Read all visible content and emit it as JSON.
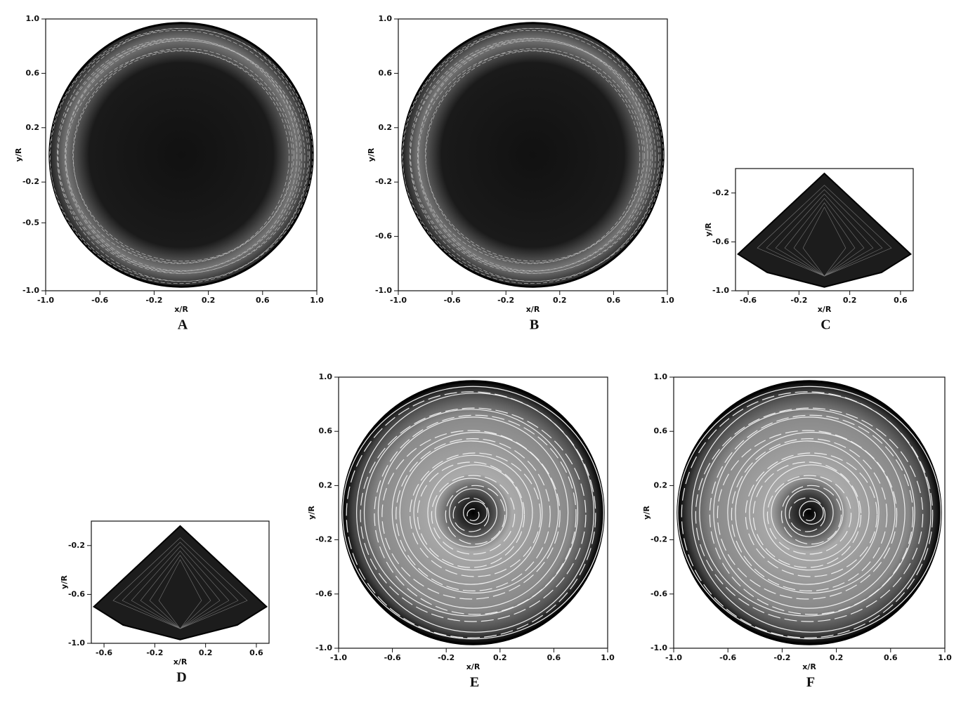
{
  "chart_data": [
    {
      "type": "contour",
      "label": "A",
      "xlabel": "x/R",
      "ylabel": "y/R",
      "xlim": [
        -1.0,
        1.0
      ],
      "ylim": [
        -1.0,
        1.0
      ],
      "xticks": [
        {
          "value": -1,
          "label": "-1.0"
        },
        -0.6,
        -0.2,
        0.2,
        0.6,
        {
          "value": 1,
          "label": "1.0"
        }
      ],
      "yticks": [
        {
          "value": 1,
          "label": "1.0"
        },
        0.6,
        0.2,
        -0.2,
        -0.5,
        {
          "value": -1,
          "label": "-1.0"
        }
      ]
    },
    {
      "type": "contour",
      "label": "B",
      "xlabel": "x/R",
      "ylabel": "y/R",
      "xlim": [
        -1.0,
        1.0
      ],
      "ylim": [
        -1.0,
        1.0
      ],
      "xticks": [
        {
          "value": -1,
          "label": "-1.0"
        },
        -0.6,
        -0.2,
        0.2,
        0.6,
        {
          "value": 1,
          "label": "1.0"
        }
      ],
      "yticks": [
        {
          "value": 1,
          "label": "1.0"
        },
        0.6,
        0.2,
        -0.2,
        -0.6,
        {
          "value": -1,
          "label": "-1.0"
        }
      ]
    },
    {
      "type": "contour-wedge",
      "label": "C",
      "xlabel": "x/R",
      "ylabel": "y/R",
      "xlim": [
        -0.7,
        0.7
      ],
      "ylim": [
        -1.0,
        0
      ],
      "xticks": [
        -0.6,
        -0.2,
        0.2,
        0.6
      ],
      "yticks": [
        -0.2,
        -0.6,
        {
          "value": -1,
          "label": "-1.0"
        }
      ]
    },
    {
      "type": "contour-wedge",
      "label": "D",
      "xlabel": "x/R",
      "ylabel": "y/R",
      "xlim": [
        -0.7,
        0.7
      ],
      "ylim": [
        -1.0,
        0
      ],
      "xticks": [
        -0.6,
        -0.2,
        0.2,
        0.6
      ],
      "yticks": [
        -0.2,
        -0.6,
        {
          "value": -1,
          "label": "-1.0"
        }
      ]
    },
    {
      "type": "contour-open",
      "label": "E",
      "xlabel": "x/R",
      "ylabel": "y/R",
      "xlim": [
        -1.0,
        1.0
      ],
      "ylim": [
        -1.0,
        1.0
      ],
      "xticks": [
        {
          "value": -1,
          "label": "-1.0"
        },
        -0.6,
        -0.2,
        0.2,
        0.6,
        {
          "value": 1,
          "label": "1.0"
        }
      ],
      "yticks": [
        {
          "value": 1,
          "label": "1.0"
        },
        0.6,
        0.2,
        -0.2,
        -0.6,
        {
          "value": -1,
          "label": "-1.0"
        }
      ]
    },
    {
      "type": "contour-open",
      "label": "F",
      "xlabel": "x/R",
      "ylabel": "y/R",
      "xlim": [
        -1.0,
        1.0
      ],
      "ylim": [
        -1.0,
        1.0
      ],
      "xticks": [
        {
          "value": -1,
          "label": "-1.0"
        },
        -0.6,
        -0.2,
        0.2,
        0.6,
        {
          "value": 1,
          "label": "1.0"
        }
      ],
      "yticks": [
        {
          "value": 1,
          "label": "1.0"
        },
        0.6,
        0.2,
        -0.2,
        -0.6,
        {
          "value": -1,
          "label": "-1.0"
        }
      ]
    }
  ]
}
